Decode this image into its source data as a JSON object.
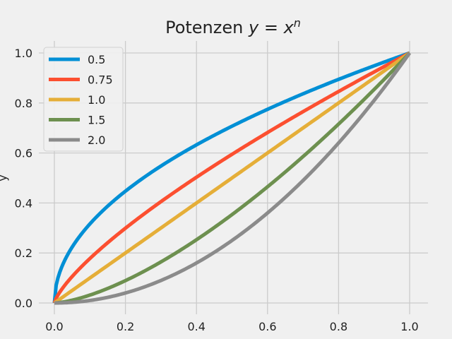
{
  "chart_data": {
    "type": "line",
    "title": "Potenzen",
    "title_math": "y = x^n",
    "xlabel": "",
    "ylabel": "y",
    "xlim": [
      0,
      1
    ],
    "ylim": [
      0,
      1
    ],
    "x_ticks": [
      "0.0",
      "0.2",
      "0.4",
      "0.6",
      "0.8",
      "1.0"
    ],
    "y_ticks": [
      "0.0",
      "0.2",
      "0.4",
      "0.6",
      "0.8",
      "1.0"
    ],
    "grid": true,
    "legend_position": "top-left",
    "background": "#f0f0f0",
    "grid_color": "#cbcbcb",
    "series": [
      {
        "name": "0.5",
        "exponent": 0.5,
        "color": "#008fd5"
      },
      {
        "name": "0.75",
        "exponent": 0.75,
        "color": "#fc4f30"
      },
      {
        "name": "1.0",
        "exponent": 1.0,
        "color": "#e5ae38"
      },
      {
        "name": "1.5",
        "exponent": 1.5,
        "color": "#6d904f"
      },
      {
        "name": "2.0",
        "exponent": 2.0,
        "color": "#8b8b8b"
      }
    ]
  }
}
